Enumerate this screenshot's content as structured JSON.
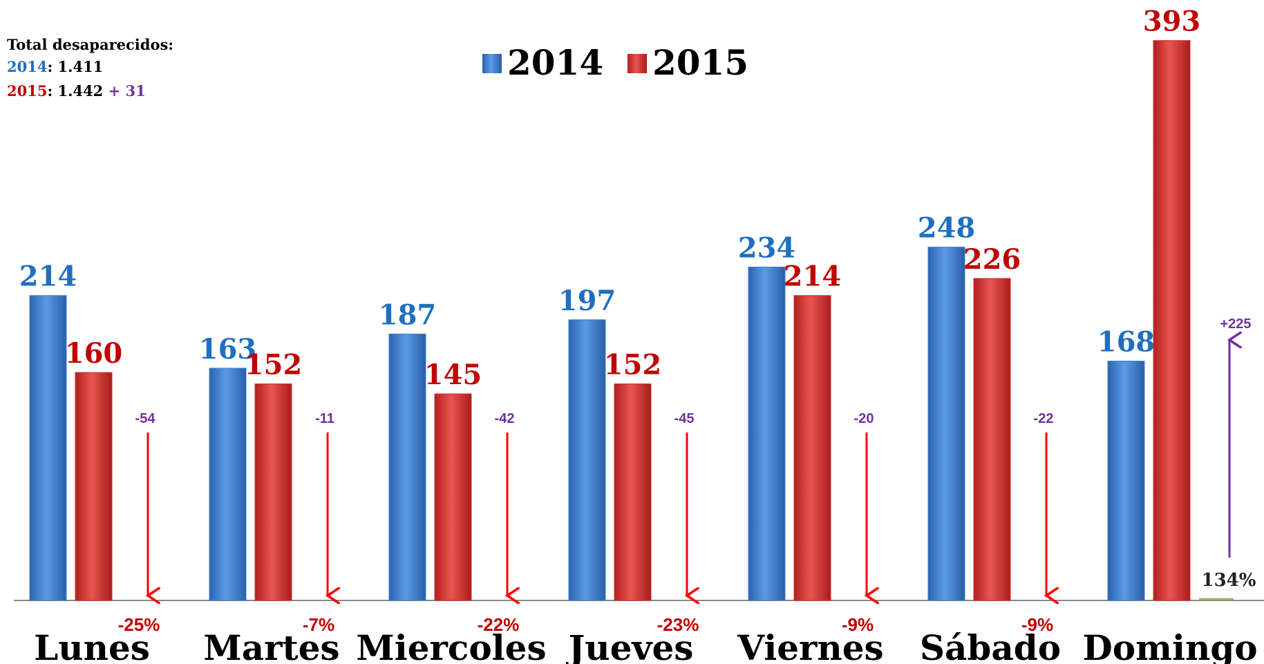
{
  "chart_data": {
    "type": "bar",
    "categories": [
      "Lunes",
      "Martes",
      "Miercoles",
      "Jueves",
      "Viernes",
      "Sábado",
      "Domingo"
    ],
    "series": [
      {
        "name": "2014",
        "color": "#3f7fd0",
        "label_color": "#1f6fc0",
        "values": [
          214,
          163,
          187,
          197,
          234,
          248,
          168
        ]
      },
      {
        "name": "2015",
        "color": "#d0312f",
        "label_color": "#c00000",
        "values": [
          160,
          152,
          145,
          152,
          214,
          226,
          393
        ]
      }
    ],
    "changes": [
      "-54",
      "-11",
      "-42",
      "-45",
      "-20",
      "-22",
      "+225"
    ],
    "change_pct": [
      "-25%",
      "-7%",
      "-22%",
      "-23%",
      "-9%",
      "-9%",
      "134%"
    ],
    "totals": {
      "title": "Total desaparecidos:",
      "lines": [
        {
          "year": "2014",
          "total": "1.411"
        },
        {
          "year": "2015",
          "total": "1.442",
          "diff": "+ 31"
        }
      ]
    }
  }
}
